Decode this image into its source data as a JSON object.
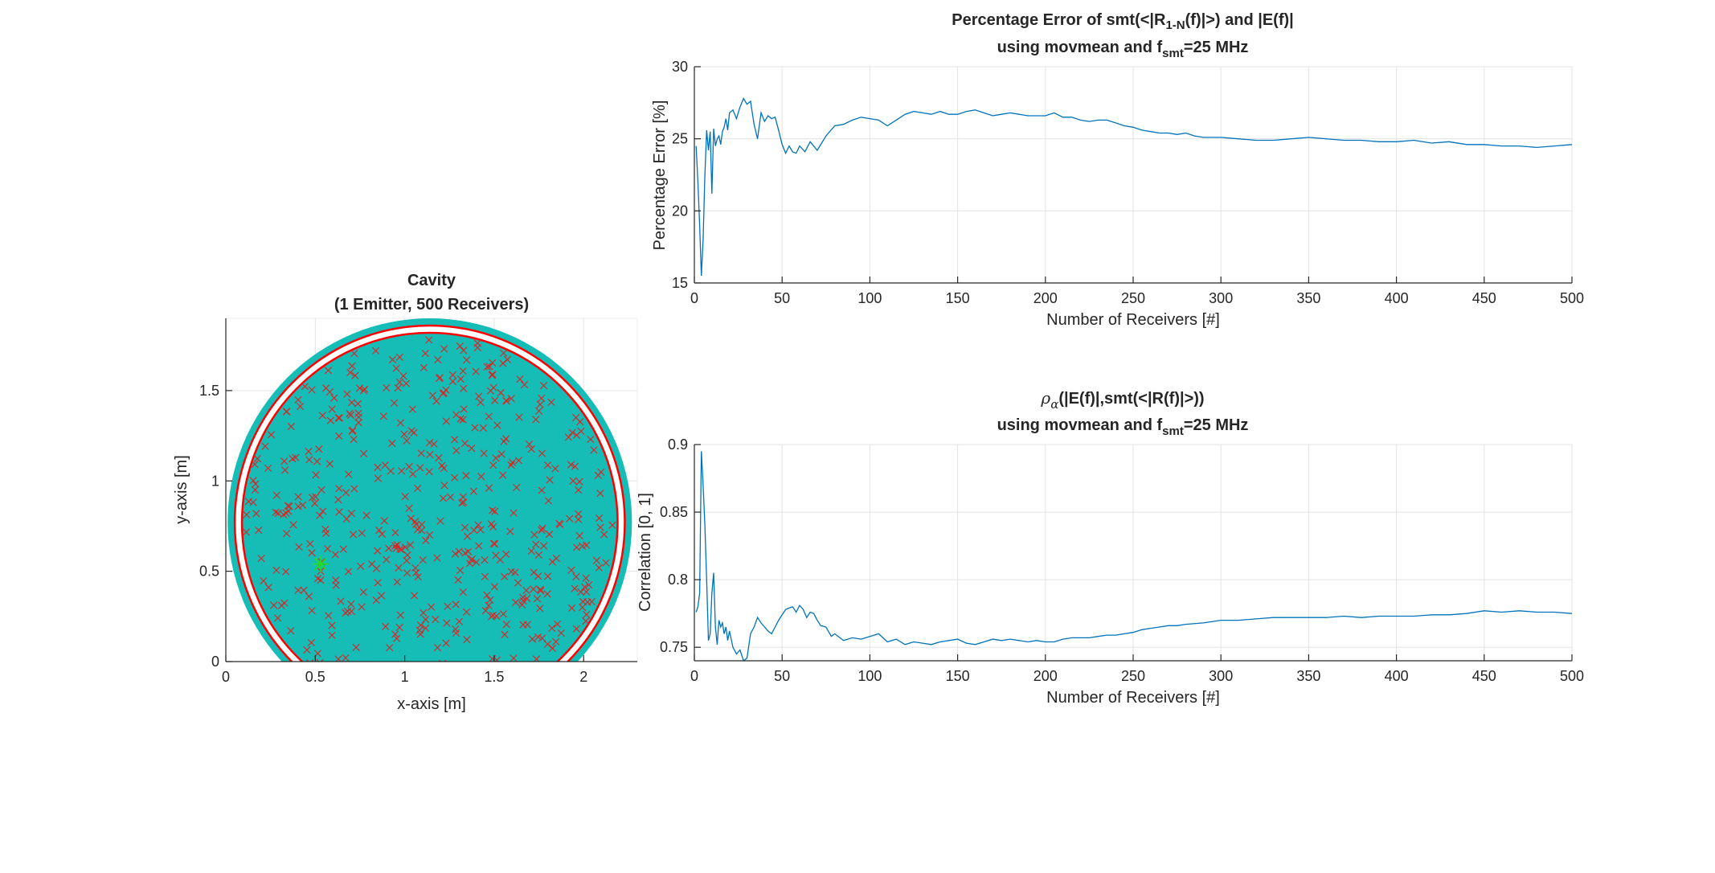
{
  "chart_data": [
    {
      "type": "scatter",
      "panel": "cavity-map",
      "title": "Cavity",
      "subtitle": "(1 Emitter, 500 Receivers)",
      "xlabel": "x-axis [m]",
      "ylabel": "y-axis [m]",
      "xlim": [
        0,
        2.3
      ],
      "ylim": [
        0,
        1.9
      ],
      "xticks": [
        0,
        0.5,
        1,
        1.5,
        2
      ],
      "xtick_labels": [
        "0",
        "0.5",
        "1",
        "1.5",
        "2"
      ],
      "yticks": [
        0,
        0.5,
        1,
        1.5
      ],
      "ytick_labels": [
        "0",
        "0.5",
        "1",
        "1.5"
      ],
      "grid": true,
      "cavity": {
        "center": [
          1.14,
          0.77
        ],
        "outer_radius": 1.13,
        "inner_radius": 1.07,
        "fill_color": "#16bdb6"
      },
      "boundary_circle_color": "#ff0000",
      "emitter": {
        "x": 0.53,
        "y": 0.54,
        "color": "#22dd22"
      },
      "receivers": {
        "count": 500,
        "marker": "x",
        "color": "#dd2222"
      }
    },
    {
      "type": "line",
      "panel": "percentage-error",
      "title_parts": [
        "Percentage Error of smt(<|R",
        "1-N",
        "(f)|>) and |E(f)|"
      ],
      "subtitle_parts": [
        "using movmean and f",
        "smt",
        "=25 MHz"
      ],
      "xlabel": "Number of Receivers [#]",
      "ylabel": "Percentage Error [%]",
      "xlim": [
        0,
        500
      ],
      "ylim": [
        15,
        30
      ],
      "xticks": [
        0,
        50,
        100,
        150,
        200,
        250,
        300,
        350,
        400,
        450,
        500
      ],
      "xtick_labels": [
        "0",
        "50",
        "100",
        "150",
        "200",
        "250",
        "300",
        "350",
        "400",
        "450",
        "500"
      ],
      "yticks": [
        15,
        20,
        25,
        30
      ],
      "ytick_labels": [
        "15",
        "20",
        "25",
        "30"
      ],
      "grid": true,
      "line_color": "#0072bd",
      "x": [
        1,
        2,
        3,
        4,
        5,
        6,
        7,
        8,
        9,
        10,
        11,
        12,
        13,
        14,
        15,
        16,
        17,
        18,
        19,
        20,
        22,
        24,
        26,
        28,
        30,
        32,
        34,
        36,
        38,
        40,
        42,
        44,
        46,
        48,
        50,
        52,
        54,
        56,
        58,
        60,
        63,
        66,
        70,
        75,
        80,
        85,
        90,
        95,
        100,
        105,
        110,
        115,
        120,
        125,
        130,
        135,
        140,
        145,
        150,
        155,
        160,
        165,
        170,
        175,
        180,
        185,
        190,
        195,
        200,
        205,
        210,
        215,
        220,
        225,
        230,
        235,
        240,
        245,
        250,
        255,
        260,
        265,
        270,
        275,
        280,
        285,
        290,
        295,
        300,
        310,
        320,
        330,
        340,
        350,
        360,
        370,
        380,
        390,
        400,
        410,
        420,
        430,
        440,
        450,
        460,
        470,
        480,
        490,
        500
      ],
      "y": [
        24.5,
        22.0,
        19.0,
        15.5,
        18.0,
        22.5,
        25.6,
        24.2,
        25.5,
        21.2,
        25.7,
        24.5,
        25.0,
        25.2,
        24.6,
        25.5,
        25.8,
        26.4,
        25.6,
        26.8,
        27.0,
        26.4,
        27.2,
        27.8,
        27.4,
        27.6,
        26.0,
        25.0,
        26.8,
        26.2,
        26.6,
        26.4,
        26.5,
        25.6,
        24.6,
        24.0,
        24.5,
        24.1,
        24.0,
        24.5,
        24.1,
        24.8,
        24.2,
        25.2,
        25.9,
        26.0,
        26.3,
        26.5,
        26.4,
        26.3,
        25.9,
        26.3,
        26.7,
        26.9,
        26.8,
        26.7,
        26.9,
        26.7,
        26.7,
        26.9,
        27.0,
        26.8,
        26.6,
        26.7,
        26.8,
        26.7,
        26.6,
        26.6,
        26.6,
        26.8,
        26.5,
        26.5,
        26.3,
        26.2,
        26.3,
        26.3,
        26.1,
        25.9,
        25.8,
        25.6,
        25.5,
        25.4,
        25.4,
        25.3,
        25.4,
        25.2,
        25.1,
        25.1,
        25.1,
        25.0,
        24.9,
        24.9,
        25.0,
        25.1,
        25.0,
        24.9,
        24.9,
        24.8,
        24.8,
        24.9,
        24.7,
        24.8,
        24.6,
        24.6,
        24.5,
        24.5,
        24.4,
        24.5,
        24.6
      ]
    },
    {
      "type": "line",
      "panel": "correlation",
      "title_parts": [
        "ρ",
        "α",
        "(|E(f)|,smt(<|R(f)|>))"
      ],
      "subtitle_parts": [
        "using movmean and f",
        "smt",
        "=25 MHz"
      ],
      "xlabel": "Number of Receivers [#]",
      "ylabel": "Correlation [0, 1]",
      "xlim": [
        0,
        500
      ],
      "ylim": [
        0.74,
        0.9
      ],
      "xticks": [
        0,
        50,
        100,
        150,
        200,
        250,
        300,
        350,
        400,
        450,
        500
      ],
      "xtick_labels": [
        "0",
        "50",
        "100",
        "150",
        "200",
        "250",
        "300",
        "350",
        "400",
        "450",
        "500"
      ],
      "yticks": [
        0.75,
        0.8,
        0.85,
        0.9
      ],
      "ytick_labels": [
        "0.75",
        "0.8",
        "0.85",
        "0.9"
      ],
      "grid": true,
      "line_color": "#0072bd",
      "x": [
        1,
        2,
        3,
        4,
        5,
        6,
        7,
        8,
        9,
        10,
        11,
        12,
        13,
        14,
        15,
        16,
        17,
        18,
        19,
        20,
        22,
        24,
        26,
        28,
        30,
        32,
        34,
        36,
        38,
        40,
        42,
        44,
        46,
        48,
        50,
        52,
        54,
        56,
        58,
        60,
        62,
        64,
        66,
        68,
        70,
        72,
        75,
        78,
        80,
        85,
        90,
        95,
        100,
        105,
        110,
        115,
        120,
        125,
        130,
        135,
        140,
        145,
        150,
        155,
        160,
        165,
        170,
        175,
        180,
        185,
        190,
        195,
        200,
        205,
        210,
        215,
        220,
        225,
        230,
        235,
        240,
        245,
        250,
        255,
        260,
        265,
        270,
        275,
        280,
        290,
        300,
        310,
        320,
        330,
        340,
        350,
        360,
        370,
        380,
        390,
        400,
        410,
        420,
        430,
        440,
        450,
        460,
        470,
        480,
        490,
        500
      ],
      "y": [
        0.776,
        0.78,
        0.79,
        0.895,
        0.87,
        0.84,
        0.8,
        0.755,
        0.76,
        0.79,
        0.805,
        0.765,
        0.752,
        0.77,
        0.765,
        0.768,
        0.76,
        0.765,
        0.755,
        0.762,
        0.75,
        0.745,
        0.748,
        0.74,
        0.742,
        0.76,
        0.765,
        0.772,
        0.768,
        0.765,
        0.762,
        0.76,
        0.765,
        0.77,
        0.774,
        0.778,
        0.779,
        0.78,
        0.776,
        0.781,
        0.778,
        0.772,
        0.776,
        0.775,
        0.77,
        0.766,
        0.765,
        0.758,
        0.76,
        0.755,
        0.757,
        0.756,
        0.758,
        0.76,
        0.754,
        0.756,
        0.752,
        0.754,
        0.753,
        0.752,
        0.754,
        0.755,
        0.756,
        0.753,
        0.752,
        0.754,
        0.756,
        0.755,
        0.756,
        0.755,
        0.754,
        0.755,
        0.754,
        0.754,
        0.756,
        0.757,
        0.757,
        0.757,
        0.758,
        0.759,
        0.759,
        0.76,
        0.761,
        0.763,
        0.764,
        0.765,
        0.766,
        0.766,
        0.767,
        0.768,
        0.77,
        0.77,
        0.771,
        0.772,
        0.772,
        0.772,
        0.772,
        0.773,
        0.772,
        0.773,
        0.773,
        0.773,
        0.774,
        0.774,
        0.775,
        0.777,
        0.776,
        0.777,
        0.776,
        0.776,
        0.775
      ]
    }
  ]
}
